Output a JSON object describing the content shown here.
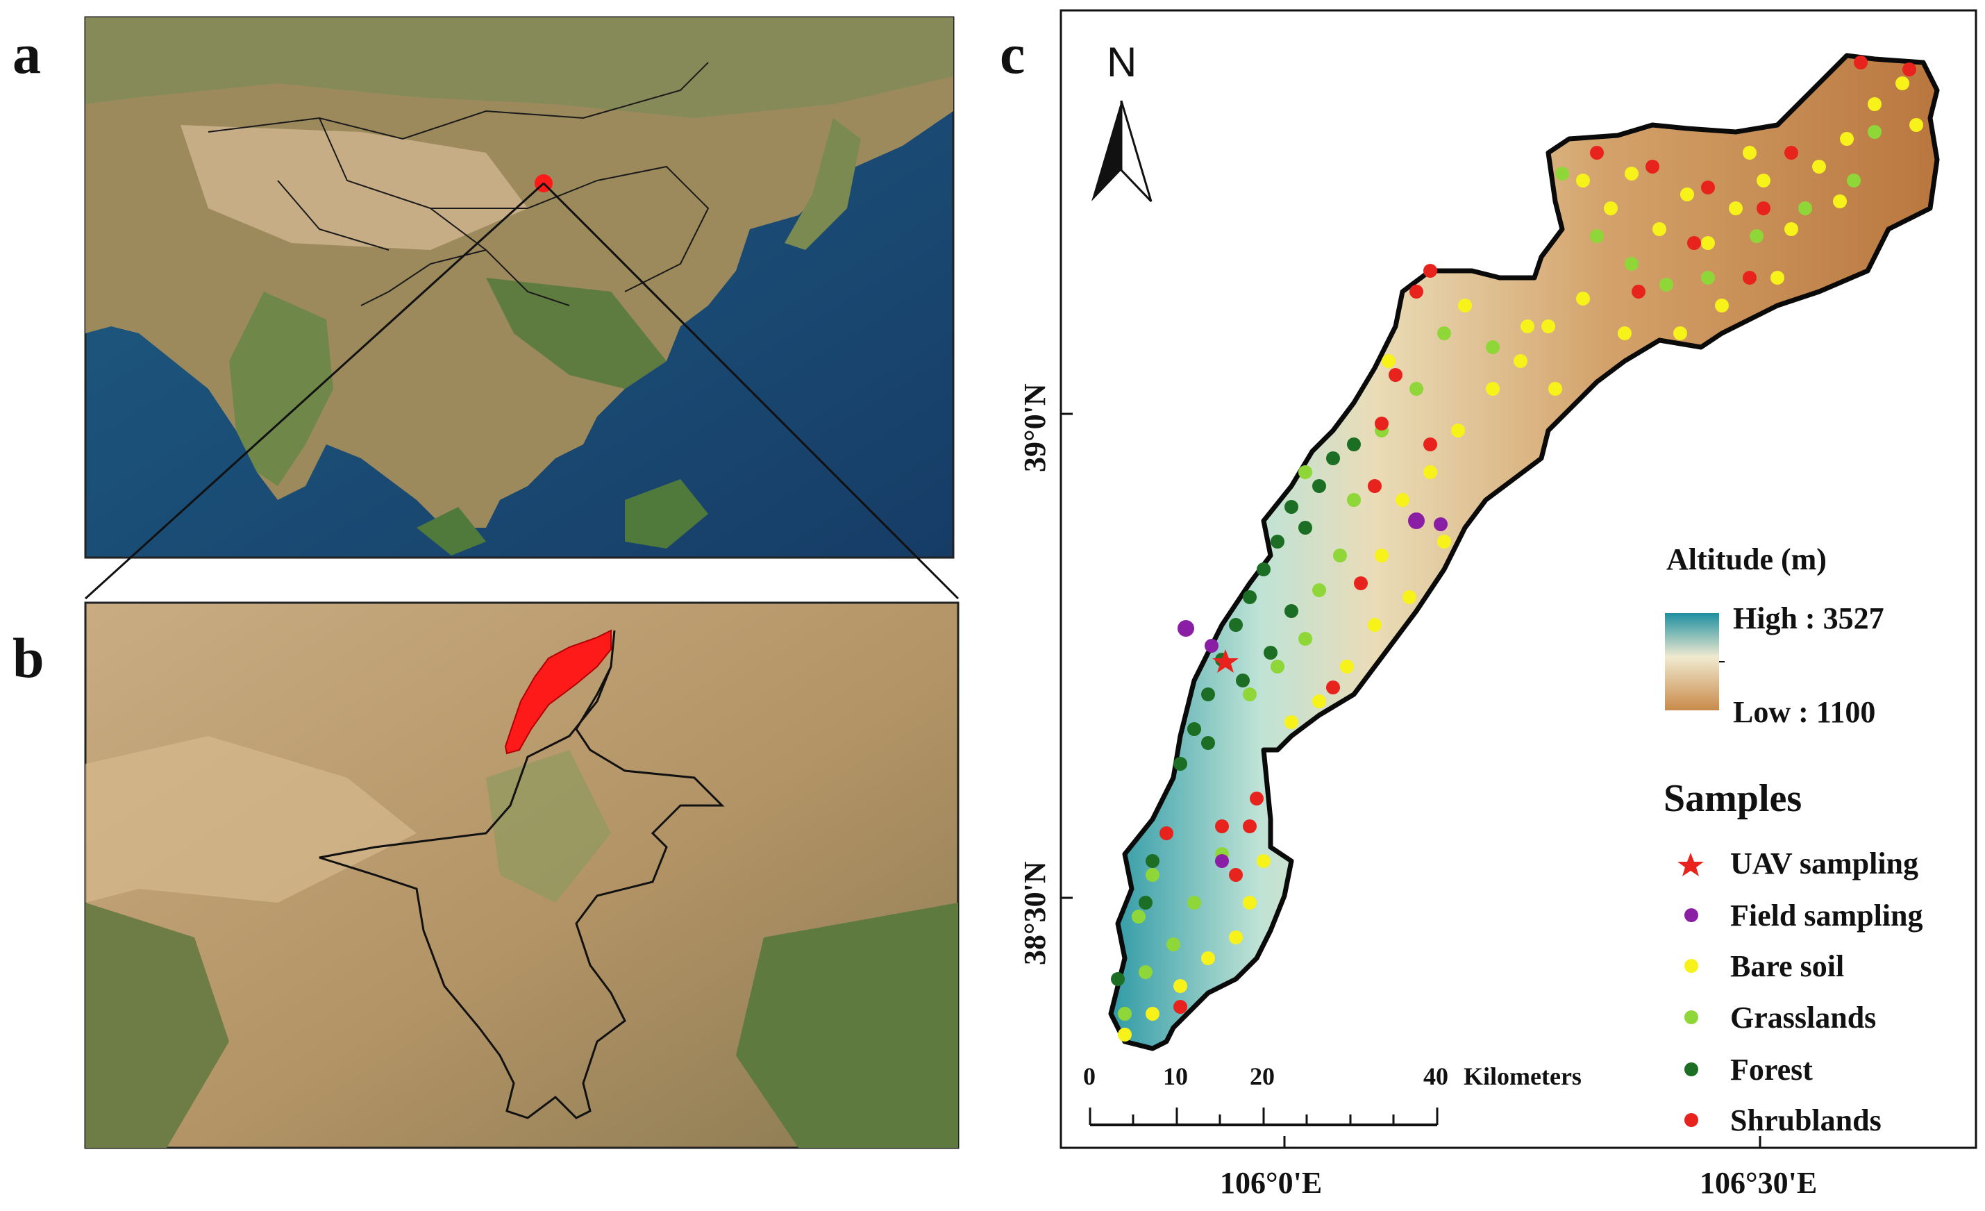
{
  "panels": {
    "a": {
      "letter": "a"
    },
    "b": {
      "letter": "b"
    },
    "c": {
      "letter": "c"
    }
  },
  "map_c": {
    "north_label": "N",
    "lat_ticks": [
      "39°0'N",
      "38°30'N"
    ],
    "lon_ticks": [
      "106°0'E",
      "106°30'E"
    ],
    "scale_bar": {
      "labels": [
        "0",
        "10",
        "20",
        "40"
      ],
      "unit": "Kilometers"
    },
    "legend": {
      "altitude_title": "Altitude (m)",
      "high_label": "High : 3527",
      "low_label": "Low : 1100",
      "samples_title": "Samples",
      "items": [
        {
          "label": "UAV sampling",
          "color": "#e8231e",
          "symbol": "star"
        },
        {
          "label": "Field sampling",
          "color": "#8a1fa6",
          "symbol": "dot"
        },
        {
          "label": "Bare soil",
          "color": "#f7f21a",
          "symbol": "dot"
        },
        {
          "label": "Grasslands",
          "color": "#8fd639",
          "symbol": "dot"
        },
        {
          "label": "Forest",
          "color": "#1b6e24",
          "symbol": "dot"
        },
        {
          "label": "Shrublands",
          "color": "#e8231e",
          "symbol": "dot"
        }
      ]
    }
  },
  "colors": {
    "study_area_highlight": "#ff1a1a",
    "altitude_high": "#1e8fa0",
    "altitude_mid": "#f0ead0",
    "altitude_low": "#c98a4a"
  }
}
